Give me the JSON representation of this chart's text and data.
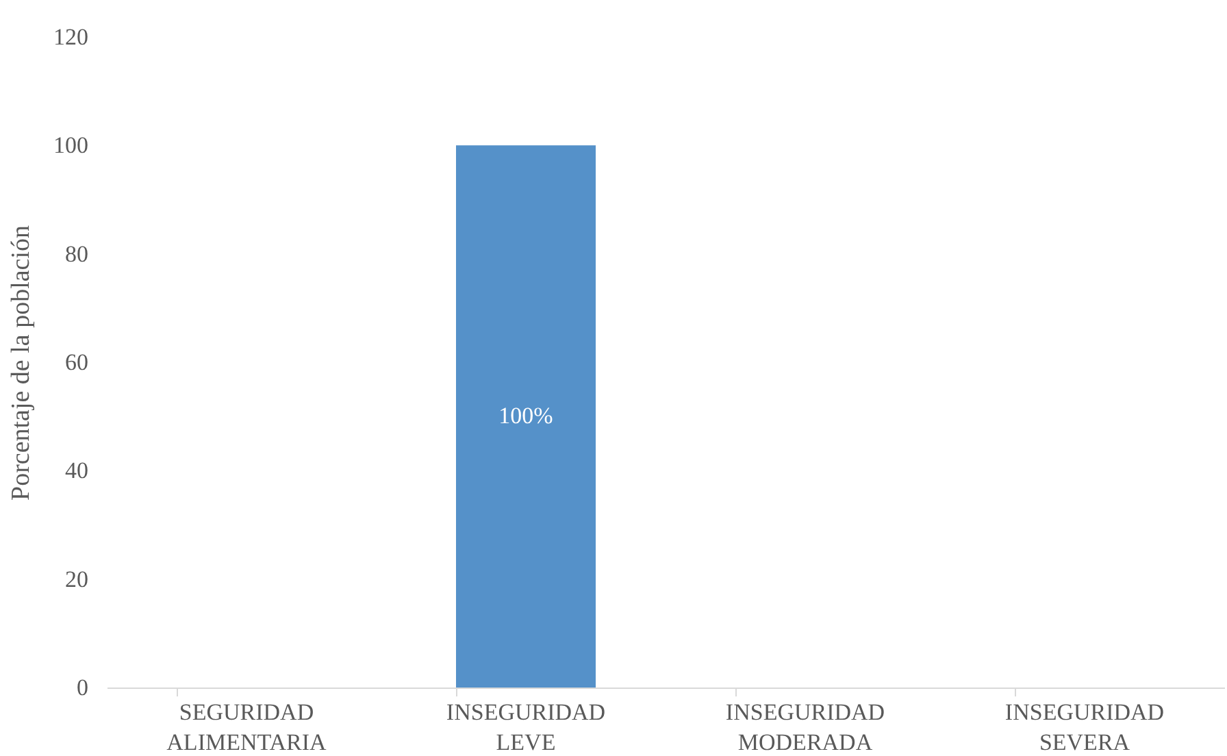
{
  "chart_data": {
    "type": "bar",
    "ylabel": "Porcentaje de la población",
    "categories": [
      "SEGURIDAD ALIMENTARIA",
      "INSEGURIDAD LEVE",
      "INSEGURIDAD MODERADA",
      "INSEGURIDAD SEVERA"
    ],
    "values": [
      0,
      100,
      0,
      0
    ],
    "value_labels": [
      null,
      "100%",
      null,
      null
    ],
    "color": "#5591c9",
    "ylim": [
      0,
      120
    ],
    "yticks": [
      0,
      20,
      40,
      60,
      80,
      100,
      120
    ],
    "grid": false
  }
}
